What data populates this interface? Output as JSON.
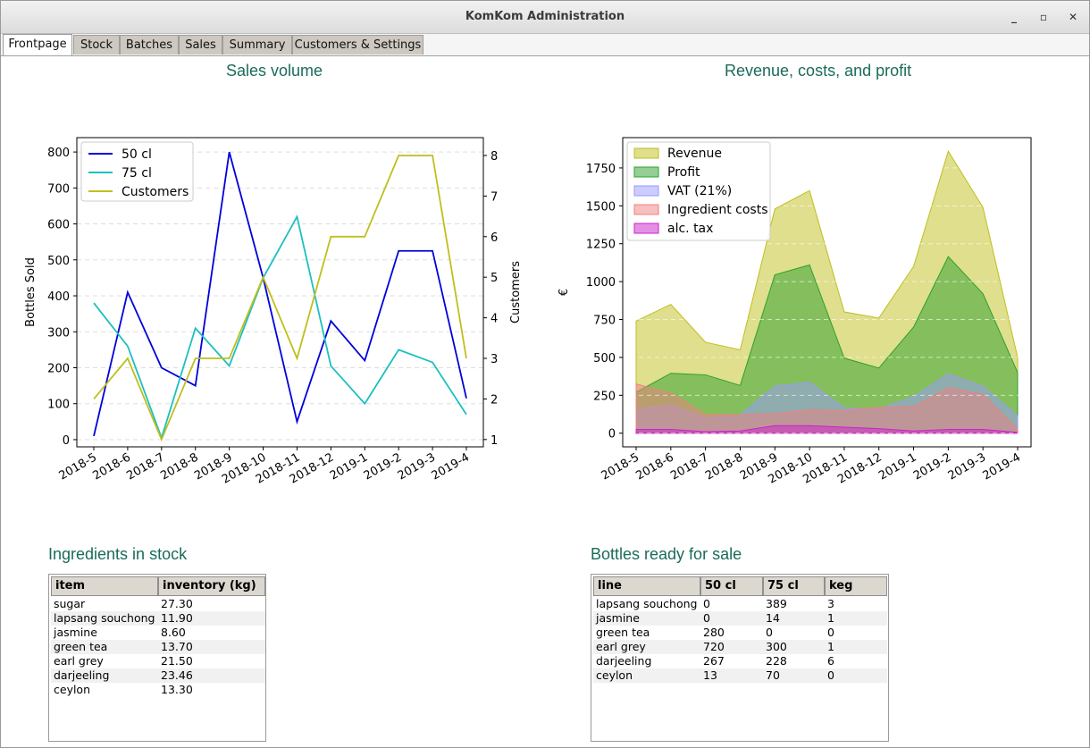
{
  "window": {
    "title": "KomKom Administration",
    "controls": [
      "_",
      "▫",
      "✕"
    ]
  },
  "tabs": [
    {
      "label": "Frontpage",
      "active": true
    },
    {
      "label": "Stock"
    },
    {
      "label": "Batches"
    },
    {
      "label": "Sales"
    },
    {
      "label": "Summary"
    },
    {
      "label": "Customers & Settings"
    }
  ],
  "sections": {
    "sales_volume": "Sales volume",
    "revenue": "Revenue, costs, and profit",
    "ingredients": "Ingredients in stock",
    "bottles": "Bottles ready for sale"
  },
  "chart_data": [
    {
      "type": "line",
      "title": "Sales volume",
      "categories": [
        "2018-5",
        "2018-6",
        "2018-7",
        "2018-8",
        "2018-9",
        "2018-10",
        "2018-11",
        "2018-12",
        "2019-1",
        "2019-2",
        "2019-3",
        "2019-4"
      ],
      "ylabel": "Bottles Sold",
      "y2label": "Customers",
      "ylim": [
        -20,
        840
      ],
      "yticks": [
        0,
        100,
        200,
        300,
        400,
        500,
        600,
        700,
        800
      ],
      "y2lim": [
        0.82,
        8.44
      ],
      "y2ticks": [
        1,
        2,
        3,
        4,
        5,
        6,
        7,
        8
      ],
      "grid": true,
      "legend": "top-left",
      "series": [
        {
          "name": "50 cl",
          "axis": "left",
          "color": "#0000dd",
          "values": [
            10,
            410,
            200,
            150,
            800,
            450,
            50,
            330,
            220,
            525,
            525,
            115
          ]
        },
        {
          "name": "75 cl",
          "axis": "left",
          "color": "#1ebfbf",
          "values": [
            380,
            260,
            5,
            310,
            205,
            450,
            620,
            205,
            100,
            250,
            215,
            70
          ]
        },
        {
          "name": "Customers",
          "axis": "right",
          "color": "#bfbf1e",
          "values": [
            2,
            3,
            1,
            3,
            3,
            5,
            3,
            6,
            6,
            8,
            8,
            3
          ]
        }
      ]
    },
    {
      "type": "area",
      "title": "Revenue, costs, and profit",
      "categories": [
        "2018-5",
        "2018-6",
        "2018-7",
        "2018-8",
        "2018-9",
        "2018-10",
        "2018-11",
        "2018-12",
        "2019-1",
        "2019-2",
        "2019-3",
        "2019-4"
      ],
      "ylabel": "€",
      "ylim": [
        -90,
        1950
      ],
      "yticks": [
        0,
        250,
        500,
        750,
        1000,
        1250,
        1500,
        1750
      ],
      "grid": true,
      "legend": "top-left",
      "series": [
        {
          "name": "Revenue",
          "color": "#bfbf1e",
          "values": [
            740,
            850,
            600,
            550,
            1480,
            1600,
            800,
            760,
            1100,
            1860,
            1490,
            500
          ]
        },
        {
          "name": "Profit",
          "color": "#2ca02c",
          "values": [
            270,
            395,
            385,
            315,
            1045,
            1110,
            495,
            430,
            700,
            1165,
            920,
            400
          ]
        },
        {
          "name": "VAT (21%)",
          "color": "#9a9aff",
          "values": [
            160,
            185,
            100,
            120,
            310,
            335,
            165,
            160,
            240,
            390,
            310,
            115
          ]
        },
        {
          "name": "Ingredient costs",
          "color": "#f08080",
          "values": [
            325,
            265,
            125,
            120,
            130,
            155,
            150,
            170,
            175,
            300,
            255,
            25
          ]
        },
        {
          "name": "alc. tax",
          "color": "#cc22cc",
          "values": [
            25,
            25,
            10,
            15,
            50,
            50,
            40,
            30,
            15,
            25,
            25,
            5
          ]
        }
      ]
    }
  ],
  "ingredients_table": {
    "columns": [
      "item",
      "inventory (kg)"
    ],
    "rows": [
      [
        "sugar",
        "27.30"
      ],
      [
        "lapsang souchong",
        "11.90"
      ],
      [
        "jasmine",
        "8.60"
      ],
      [
        "green tea",
        "13.70"
      ],
      [
        "earl grey",
        "21.50"
      ],
      [
        "darjeeling",
        "23.46"
      ],
      [
        "ceylon",
        "13.30"
      ]
    ]
  },
  "bottles_table": {
    "columns": [
      "line",
      "50 cl",
      "75 cl",
      "keg"
    ],
    "rows": [
      [
        "lapsang souchong",
        "0",
        "389",
        "3"
      ],
      [
        "jasmine",
        "0",
        "14",
        "1"
      ],
      [
        "green tea",
        "280",
        "0",
        "0"
      ],
      [
        "earl grey",
        "720",
        "300",
        "1"
      ],
      [
        "darjeeling",
        "267",
        "228",
        "6"
      ],
      [
        "ceylon",
        "13",
        "70",
        "0"
      ]
    ]
  }
}
